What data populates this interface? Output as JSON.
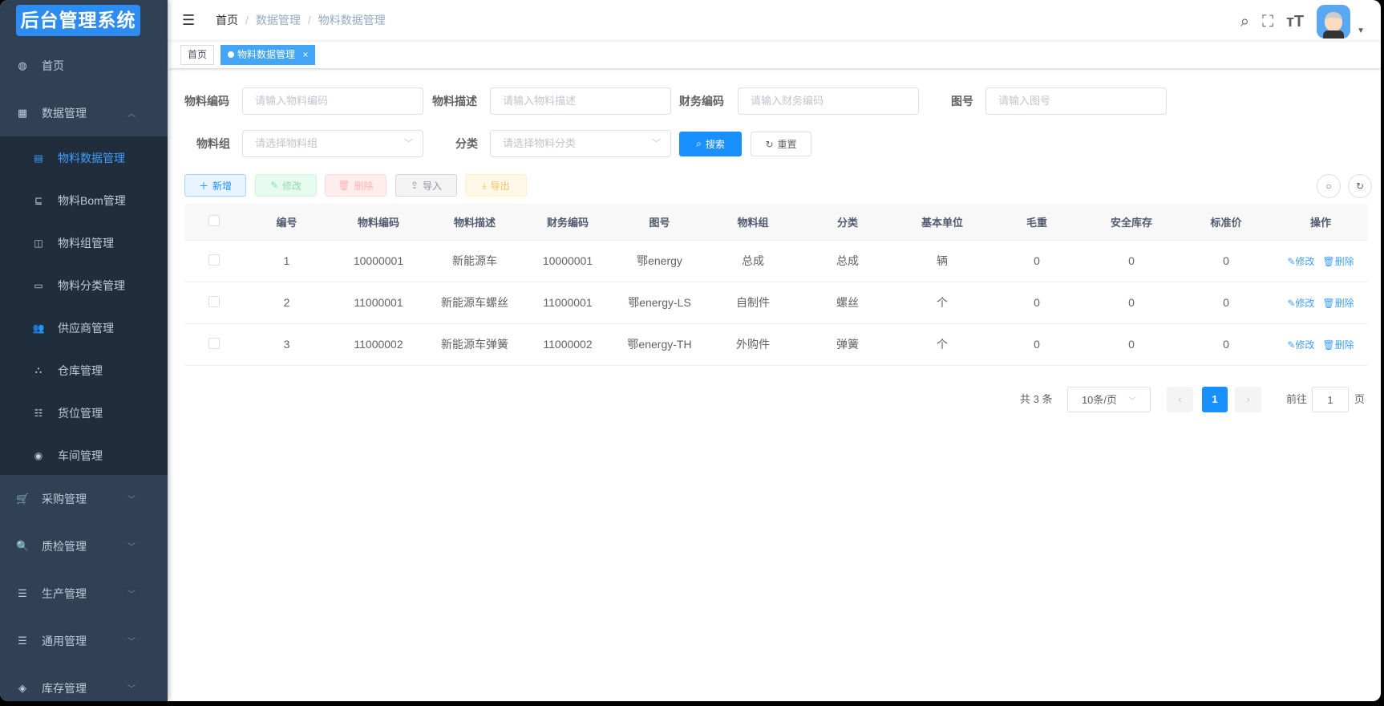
{
  "sidebar": {
    "logo": "后台管理系统",
    "items": [
      {
        "label": "首页",
        "icon": "dashboard-icon"
      },
      {
        "label": "数据管理",
        "icon": "table-icon",
        "expanded": true,
        "children": [
          {
            "label": "物料数据管理",
            "icon": "document-icon",
            "active": true
          },
          {
            "label": "物料Bom管理",
            "icon": "tree-icon"
          },
          {
            "label": "物料组管理",
            "icon": "column-icon"
          },
          {
            "label": "物料分类管理",
            "icon": "tag-icon"
          },
          {
            "label": "供应商管理",
            "icon": "peoples-icon"
          },
          {
            "label": "仓库管理",
            "icon": "hierarchy-icon"
          },
          {
            "label": "货位管理",
            "icon": "list-icon"
          },
          {
            "label": "车间管理",
            "icon": "radio-icon"
          }
        ]
      },
      {
        "label": "采购管理",
        "icon": "cart-icon"
      },
      {
        "label": "质检管理",
        "icon": "search-icon"
      },
      {
        "label": "生产管理",
        "icon": "sliders-icon"
      },
      {
        "label": "通用管理",
        "icon": "list-indent-icon"
      },
      {
        "label": "库存管理",
        "icon": "stack-icon"
      }
    ]
  },
  "header": {
    "breadcrumb": [
      "首页",
      "数据管理",
      "物料数据管理"
    ]
  },
  "tabs": [
    {
      "label": "首页"
    },
    {
      "label": "物料数据管理",
      "active": true,
      "close": "×"
    }
  ],
  "filters": {
    "material_code": {
      "label": "物料编码",
      "placeholder": "请输入物料编码"
    },
    "material_desc": {
      "label": "物料描述",
      "placeholder": "请输入物料描述"
    },
    "finance_code": {
      "label": "财务编码",
      "placeholder": "请输入财务编码"
    },
    "drawing_no": {
      "label": "图号",
      "placeholder": "请输入图号"
    },
    "material_group": {
      "label": "物料组",
      "placeholder": "请选择物料组"
    },
    "category": {
      "label": "分类",
      "placeholder": "请选择物料分类"
    },
    "search": "搜索",
    "reset": "重置"
  },
  "toolbar": {
    "add": "新增",
    "edit": "修改",
    "delete": "删除",
    "import": "导入",
    "export": "导出"
  },
  "table": {
    "columns": [
      "编号",
      "物料编码",
      "物料描述",
      "财务编码",
      "图号",
      "物料组",
      "分类",
      "基本单位",
      "毛重",
      "安全库存",
      "标准价",
      "操作"
    ],
    "rows": [
      [
        "1",
        "10000001",
        "新能源车",
        "10000001",
        "鄂energy",
        "总成",
        "总成",
        "辆",
        "0",
        "0",
        "0"
      ],
      [
        "2",
        "11000001",
        "新能源车螺丝",
        "11000001",
        "鄂energy-LS",
        "自制件",
        "螺丝",
        "个",
        "0",
        "0",
        "0"
      ],
      [
        "3",
        "11000002",
        "新能源车弹簧",
        "11000002",
        "鄂energy-TH",
        "外购件",
        "弹簧",
        "个",
        "0",
        "0",
        "0"
      ]
    ],
    "edit": "修改",
    "delete": "删除"
  },
  "pagination": {
    "total": "共 3 条",
    "page_size": "10条/页",
    "current": "1",
    "goto_prefix": "前往",
    "goto_value": "1",
    "goto_suffix": "页"
  },
  "colors": {
    "primary": "#409eff",
    "sidebar": "#304156",
    "submenu": "#1f2d3d"
  }
}
